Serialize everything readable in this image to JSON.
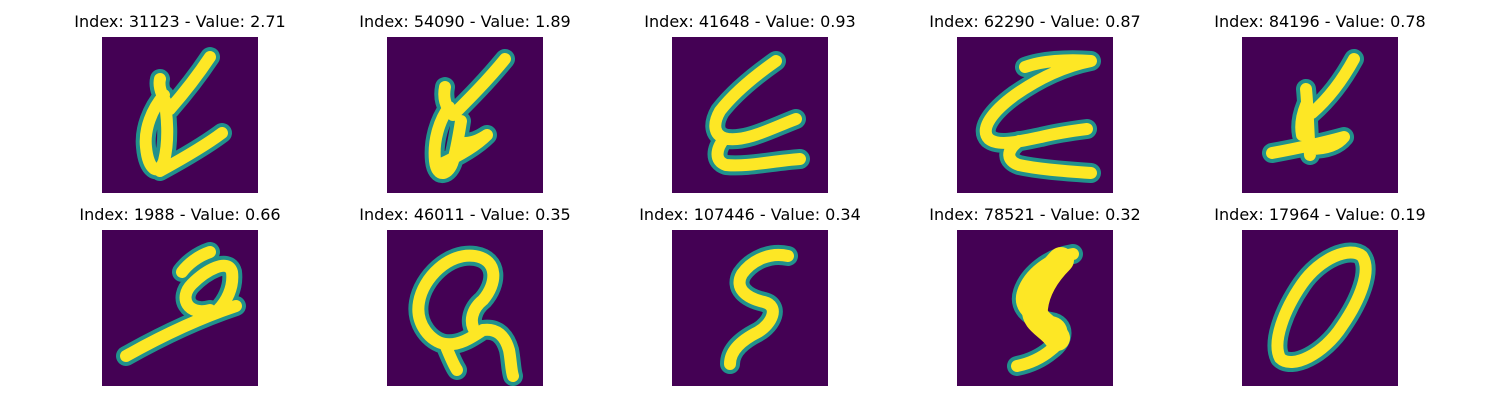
{
  "colors": {
    "background": "#440154",
    "edge": "#21918c",
    "stroke": "#fde725"
  },
  "panels": [
    {
      "title": "Index: 31123 - Value: 2.71"
    },
    {
      "title": "Index: 54090 - Value: 1.89"
    },
    {
      "title": "Index: 41648 - Value: 0.93"
    },
    {
      "title": "Index: 62290 - Value: 0.87"
    },
    {
      "title": "Index: 84196 - Value: 0.78"
    },
    {
      "title": "Index: 1988 - Value: 0.66"
    },
    {
      "title": "Index: 46011 - Value: 0.35"
    },
    {
      "title": "Index: 107446 - Value: 0.34"
    },
    {
      "title": "Index: 78521 - Value: 0.32"
    },
    {
      "title": "Index: 17964 - Value: 0.19"
    }
  ]
}
